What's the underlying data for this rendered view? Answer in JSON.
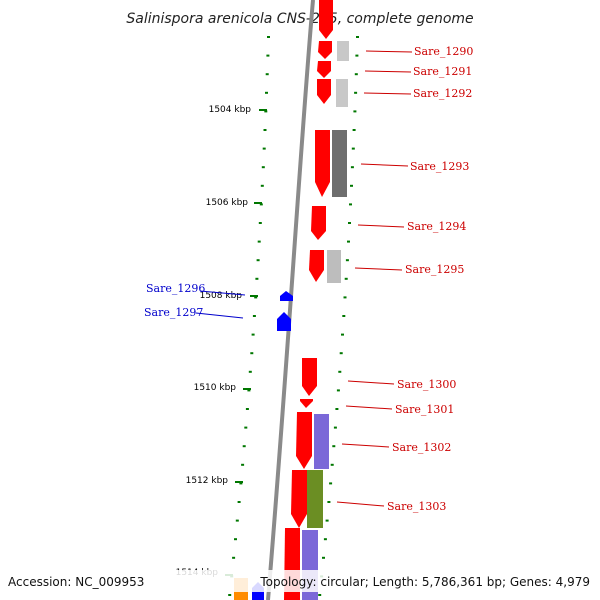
{
  "title": "Salinispora arenicola CNS-205, complete genome",
  "footer": {
    "accession": "Accession: NC_009953",
    "topology": "Topology: circular; Length: 5,786,361 bp; Genes: 4,979"
  },
  "colors": {
    "forward_gene": "#ff0000",
    "reverse_gene": "#0000ff",
    "label_forward": "#cc0000",
    "label_reverse": "#0000cc",
    "ruler": "#007700",
    "backbone": "#888888"
  },
  "ruler_ticks": [
    "1504 kbp",
    "1506 kbp",
    "1508 kbp",
    "1510 kbp",
    "1512 kbp",
    "1514 kbp"
  ],
  "gene_labels": [
    {
      "name": "Sare_1290",
      "strand": "+"
    },
    {
      "name": "Sare_1291",
      "strand": "+"
    },
    {
      "name": "Sare_1292",
      "strand": "+"
    },
    {
      "name": "Sare_1293",
      "strand": "+"
    },
    {
      "name": "Sare_1294",
      "strand": "+"
    },
    {
      "name": "Sare_1295",
      "strand": "+"
    },
    {
      "name": "Sare_1296",
      "strand": "-"
    },
    {
      "name": "Sare_1297",
      "strand": "-"
    },
    {
      "name": "Sare_1300",
      "strand": "+"
    },
    {
      "name": "Sare_1301",
      "strand": "+"
    },
    {
      "name": "Sare_1302",
      "strand": "+"
    },
    {
      "name": "Sare_1303",
      "strand": "+"
    }
  ]
}
